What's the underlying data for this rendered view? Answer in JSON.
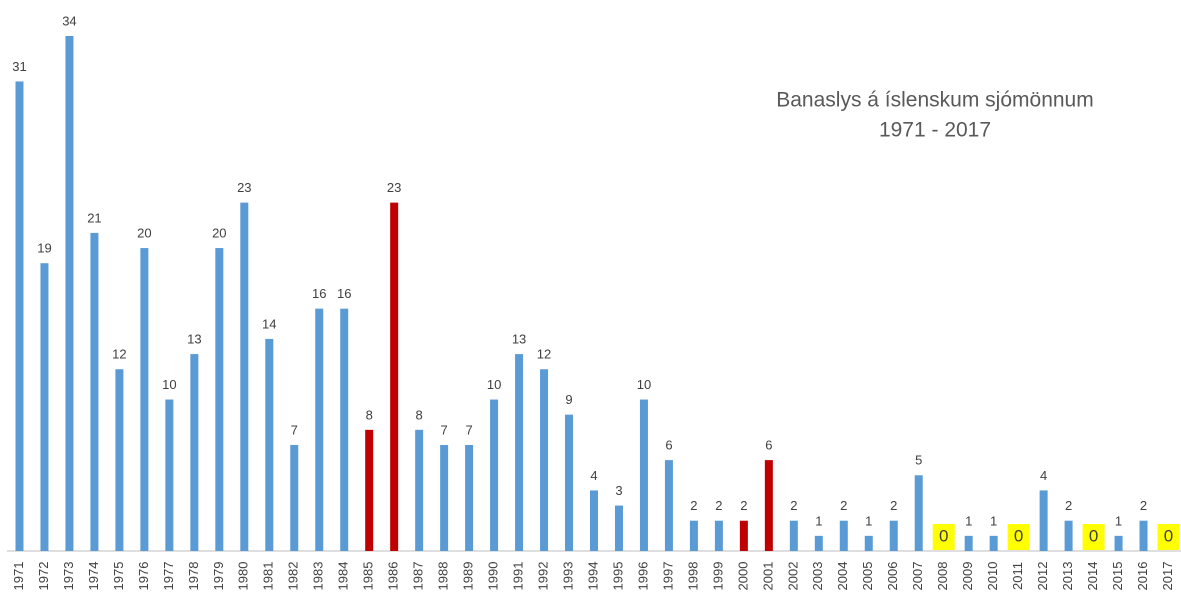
{
  "chart_data": {
    "type": "bar",
    "title": "Banaslys á íslenskum sjómönnum",
    "subtitle": "1971 - 2017",
    "categories": [
      "1971",
      "1972",
      "1973",
      "1974",
      "1975",
      "1976",
      "1977",
      "1978",
      "1979",
      "1980",
      "1981",
      "1982",
      "1983",
      "1984",
      "1985",
      "1986",
      "1987",
      "1988",
      "1989",
      "1990",
      "1991",
      "1992",
      "1993",
      "1994",
      "1995",
      "1996",
      "1997",
      "1998",
      "1999",
      "2000",
      "2001",
      "2002",
      "2003",
      "2004",
      "2005",
      "2006",
      "2007",
      "2008",
      "2009",
      "2010",
      "2011",
      "2012",
      "2013",
      "2014",
      "2015",
      "2016",
      "2017"
    ],
    "values": [
      31,
      19,
      34,
      21,
      12,
      20,
      10,
      13,
      20,
      23,
      14,
      7,
      16,
      16,
      8,
      23,
      8,
      7,
      7,
      10,
      13,
      12,
      9,
      4,
      3,
      10,
      6,
      2,
      2,
      2,
      6,
      2,
      1,
      2,
      1,
      2,
      5,
      0,
      1,
      1,
      0,
      4,
      2,
      0,
      1,
      2,
      0
    ],
    "color": "#5b9bd5",
    "highlight_color": "#c00000",
    "highlighted": [
      "1985",
      "1986",
      "2000",
      "2001"
    ],
    "zero_label_background": "#ffff00",
    "ylim": [
      0,
      34
    ]
  }
}
